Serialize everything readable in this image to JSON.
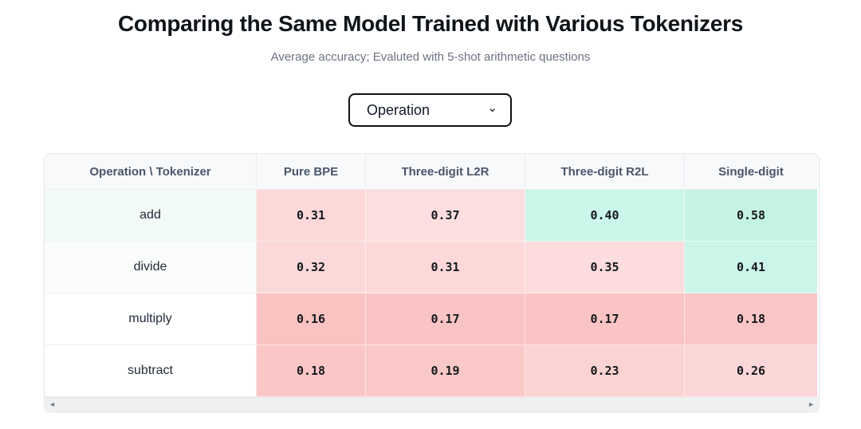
{
  "page": {
    "title": "Comparing the Same Model Trained with Various Tokenizers",
    "subtitle": "Average accuracy; Evaluted with 5-shot arithmetic questions"
  },
  "dropdown": {
    "selected_option": "Operation",
    "chevron_icon": "⌄"
  },
  "table": {
    "columns": [
      "Operation \\ Tokenizer",
      "Pure BPE",
      "Three-digit L2R",
      "Three-digit R2L",
      "Single-digit"
    ],
    "rows": [
      {
        "label": "add",
        "label_bg": "#f2faf7",
        "values": [
          "0.31",
          "0.37",
          "0.40",
          "0.58"
        ],
        "colors": [
          "#fcd8d8",
          "#fcdede",
          "#cbf6ea",
          "#c5f3e3"
        ]
      },
      {
        "label": "divide",
        "label_bg": "#fbfdfc",
        "values": [
          "0.32",
          "0.31",
          "0.35",
          "0.41"
        ],
        "colors": [
          "#fcd9d9",
          "#fcd8d8",
          "#fcdcdc",
          "#cbf5e9"
        ]
      },
      {
        "label": "multiply",
        "label_bg": "#ffffff",
        "values": [
          "0.16",
          "0.17",
          "0.17",
          "0.18"
        ],
        "colors": [
          "#fbc2c2",
          "#fbc4c4",
          "#fbc4c4",
          "#fbc6c6"
        ]
      },
      {
        "label": "subtract",
        "label_bg": "#ffffff",
        "values": [
          "0.18",
          "0.19",
          "0.23",
          "0.26"
        ],
        "colors": [
          "#fbc6c6",
          "#fbc8c8",
          "#fcd3d3",
          "#fcd7d7"
        ]
      }
    ]
  },
  "scrollbar": {
    "left_arrow_icon": "◄",
    "right_arrow_icon": "►"
  },
  "chart_data": {
    "type": "heatmap",
    "title": "Comparing the Same Model Trained with Various Tokenizers",
    "subtitle": "Average accuracy; Evaluted with 5-shot arithmetic questions",
    "row_dimension": "Operation",
    "col_dimension": "Tokenizer",
    "columns": [
      "Pure BPE",
      "Three-digit L2R",
      "Three-digit R2L",
      "Single-digit"
    ],
    "rows": [
      "add",
      "divide",
      "multiply",
      "subtract"
    ],
    "values": [
      [
        0.31,
        0.37,
        0.4,
        0.58
      ],
      [
        0.32,
        0.31,
        0.35,
        0.41
      ],
      [
        0.16,
        0.17,
        0.17,
        0.18
      ],
      [
        0.18,
        0.19,
        0.23,
        0.26
      ]
    ],
    "color_scale": {
      "low": "#fbc2c2",
      "mid": "#ffffff",
      "high": "#c5f3e3"
    }
  }
}
